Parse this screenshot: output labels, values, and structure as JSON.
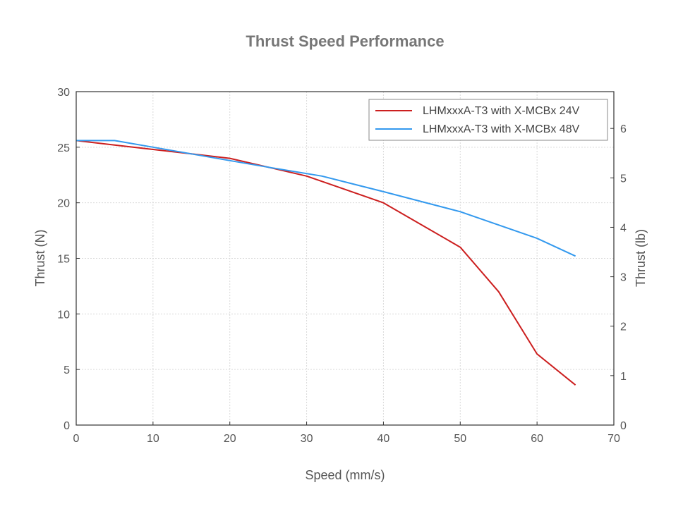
{
  "chart_data": {
    "type": "line",
    "title": "Thrust Speed Performance",
    "xlabel": "Speed (mm/s)",
    "ylabel": "Thrust (N)",
    "ylabel_right": "Thrust (lb)",
    "xlim": [
      0,
      70
    ],
    "ylim": [
      0,
      30
    ],
    "ylim_right": [
      0,
      6.744
    ],
    "x_ticks": [
      0,
      10,
      20,
      30,
      40,
      50,
      60,
      70
    ],
    "y_ticks": [
      0,
      5,
      10,
      15,
      20,
      25,
      30
    ],
    "y_ticks_right": [
      0,
      1,
      2,
      3,
      4,
      5,
      6
    ],
    "grid": true,
    "legend_position": "top-right",
    "series": [
      {
        "name": "LHMxxxA-T3 with X-MCBx 24V",
        "color": "#cc1f1f",
        "x": [
          0,
          5,
          10,
          15,
          20,
          25,
          30,
          35,
          40,
          45,
          50,
          55,
          60,
          65
        ],
        "values": [
          25.6,
          25.2,
          24.8,
          24.4,
          24.0,
          23.2,
          22.4,
          21.2,
          20.0,
          18.0,
          16.0,
          12.0,
          6.4,
          3.6
        ]
      },
      {
        "name": "LHMxxxA-T3 with X-MCBx 48V",
        "color": "#3399ee",
        "x": [
          0,
          5,
          10,
          15,
          20,
          25,
          32,
          40,
          50,
          60,
          65
        ],
        "values": [
          25.6,
          25.6,
          25.0,
          24.4,
          23.8,
          23.2,
          22.4,
          21.0,
          19.2,
          16.8,
          15.2
        ]
      }
    ]
  }
}
